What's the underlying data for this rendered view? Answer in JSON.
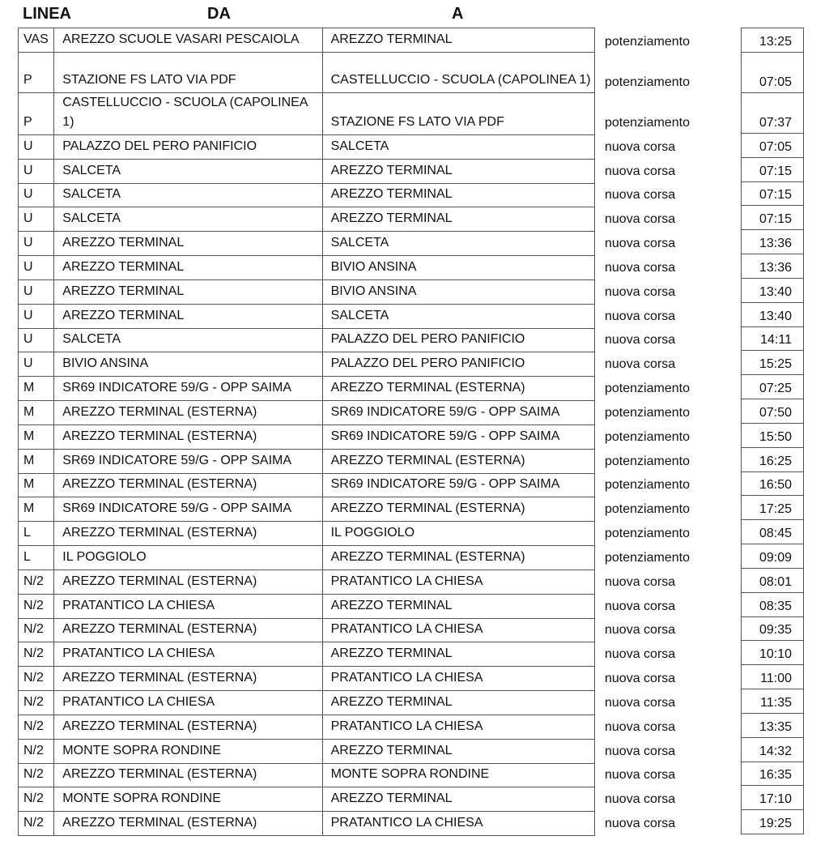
{
  "headers": {
    "linea": "LINEA",
    "da": "DA",
    "a": "A"
  },
  "rows": [
    {
      "linea": "VAS",
      "da": "AREZZO SCUOLE VASARI PESCAIOLA",
      "a": "AREZZO TERMINAL",
      "tipo": "potenziamento",
      "ora": "13:25"
    },
    {
      "linea": "P",
      "da": "STAZIONE FS LATO VIA PDF",
      "a": "CASTELLUCCIO - SCUOLA (CAPOLINEA 1)",
      "tipo": "potenziamento",
      "ora": "07:05"
    },
    {
      "linea": "P",
      "da": "CASTELLUCCIO - SCUOLA (CAPOLINEA 1)",
      "a": "STAZIONE FS LATO VIA PDF",
      "tipo": "potenziamento",
      "ora": "07:37"
    },
    {
      "linea": "U",
      "da": "PALAZZO DEL PERO PANIFICIO",
      "a": "SALCETA",
      "tipo": "nuova corsa",
      "ora": "07:05"
    },
    {
      "linea": "U",
      "da": "SALCETA",
      "a": "AREZZO TERMINAL",
      "tipo": "nuova corsa",
      "ora": "07:15"
    },
    {
      "linea": "U",
      "da": "SALCETA",
      "a": "AREZZO TERMINAL",
      "tipo": "nuova corsa",
      "ora": "07:15"
    },
    {
      "linea": "U",
      "da": "SALCETA",
      "a": "AREZZO TERMINAL",
      "tipo": "nuova corsa",
      "ora": "07:15"
    },
    {
      "linea": "U",
      "da": "AREZZO TERMINAL",
      "a": "SALCETA",
      "tipo": "nuova corsa",
      "ora": "13:36"
    },
    {
      "linea": "U",
      "da": "AREZZO TERMINAL",
      "a": "BIVIO ANSINA",
      "tipo": "nuova corsa",
      "ora": "13:36"
    },
    {
      "linea": "U",
      "da": "AREZZO TERMINAL",
      "a": "BIVIO ANSINA",
      "tipo": "nuova corsa",
      "ora": "13:40"
    },
    {
      "linea": "U",
      "da": "AREZZO TERMINAL",
      "a": "SALCETA",
      "tipo": "nuova corsa",
      "ora": "13:40"
    },
    {
      "linea": "U",
      "da": "SALCETA",
      "a": "PALAZZO DEL PERO PANIFICIO",
      "tipo": "nuova corsa",
      "ora": "14:11"
    },
    {
      "linea": "U",
      "da": "BIVIO ANSINA",
      "a": "PALAZZO DEL PERO PANIFICIO",
      "tipo": "nuova corsa",
      "ora": "15:25"
    },
    {
      "linea": "M",
      "da": "SR69 INDICATORE 59/G - OPP SAIMA",
      "a": "AREZZO TERMINAL (ESTERNA)",
      "tipo": "potenziamento",
      "ora": "07:25"
    },
    {
      "linea": "M",
      "da": "AREZZO TERMINAL (ESTERNA)",
      "a": "SR69 INDICATORE 59/G - OPP SAIMA",
      "tipo": "potenziamento",
      "ora": "07:50"
    },
    {
      "linea": "M",
      "da": "AREZZO TERMINAL (ESTERNA)",
      "a": "SR69 INDICATORE 59/G - OPP SAIMA",
      "tipo": "potenziamento",
      "ora": "15:50"
    },
    {
      "linea": "M",
      "da": "SR69 INDICATORE 59/G - OPP SAIMA",
      "a": "AREZZO TERMINAL (ESTERNA)",
      "tipo": "potenziamento",
      "ora": "16:25"
    },
    {
      "linea": "M",
      "da": "AREZZO TERMINAL (ESTERNA)",
      "a": "SR69 INDICATORE 59/G - OPP SAIMA",
      "tipo": "potenziamento",
      "ora": "16:50"
    },
    {
      "linea": "M",
      "da": "SR69 INDICATORE 59/G - OPP SAIMA",
      "a": "AREZZO TERMINAL (ESTERNA)",
      "tipo": "potenziamento",
      "ora": "17:25"
    },
    {
      "linea": "L",
      "da": "AREZZO TERMINAL (ESTERNA)",
      "a": "IL POGGIOLO",
      "tipo": "potenziamento",
      "ora": "08:45"
    },
    {
      "linea": "L",
      "da": "IL POGGIOLO",
      "a": "AREZZO TERMINAL (ESTERNA)",
      "tipo": "potenziamento",
      "ora": "09:09"
    },
    {
      "linea": "N/2",
      "da": "AREZZO TERMINAL (ESTERNA)",
      "a": "PRATANTICO LA CHIESA",
      "tipo": "nuova corsa",
      "ora": "08:01"
    },
    {
      "linea": "N/2",
      "da": "PRATANTICO LA CHIESA",
      "a": "AREZZO TERMINAL",
      "tipo": "nuova corsa",
      "ora": "08:35"
    },
    {
      "linea": "N/2",
      "da": "AREZZO TERMINAL (ESTERNA)",
      "a": "PRATANTICO LA CHIESA",
      "tipo": "nuova corsa",
      "ora": "09:35"
    },
    {
      "linea": "N/2",
      "da": "PRATANTICO LA CHIESA",
      "a": "AREZZO TERMINAL",
      "tipo": "nuova corsa",
      "ora": "10:10"
    },
    {
      "linea": "N/2",
      "da": "AREZZO TERMINAL (ESTERNA)",
      "a": "PRATANTICO LA CHIESA",
      "tipo": "nuova corsa",
      "ora": "11:00"
    },
    {
      "linea": "N/2",
      "da": "PRATANTICO LA CHIESA",
      "a": "AREZZO TERMINAL",
      "tipo": "nuova corsa",
      "ora": "11:35"
    },
    {
      "linea": "N/2",
      "da": "AREZZO TERMINAL (ESTERNA)",
      "a": "PRATANTICO LA CHIESA",
      "tipo": "nuova corsa",
      "ora": "13:35"
    },
    {
      "linea": "N/2",
      "da": "MONTE SOPRA RONDINE",
      "a": "AREZZO TERMINAL",
      "tipo": "nuova corsa",
      "ora": "14:32"
    },
    {
      "linea": "N/2",
      "da": "AREZZO TERMINAL (ESTERNA)",
      "a": "MONTE SOPRA RONDINE",
      "tipo": "nuova corsa",
      "ora": "16:35"
    },
    {
      "linea": "N/2",
      "da": "MONTE SOPRA RONDINE",
      "a": "AREZZO TERMINAL",
      "tipo": "nuova corsa",
      "ora": "17:10"
    },
    {
      "linea": "N/2",
      "da": "AREZZO TERMINAL (ESTERNA)",
      "a": "PRATANTICO LA CHIESA",
      "tipo": "nuova corsa",
      "ora": "19:25"
    }
  ]
}
